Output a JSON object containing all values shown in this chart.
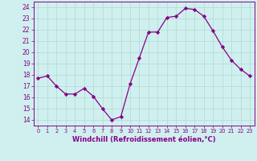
{
  "x": [
    0,
    1,
    2,
    3,
    4,
    5,
    6,
    7,
    8,
    9,
    10,
    11,
    12,
    13,
    14,
    15,
    16,
    17,
    18,
    19,
    20,
    21,
    22,
    23
  ],
  "y": [
    17.7,
    17.9,
    17.0,
    16.3,
    16.3,
    16.8,
    16.1,
    15.0,
    14.0,
    14.3,
    17.2,
    19.5,
    21.8,
    21.8,
    23.1,
    23.2,
    23.9,
    23.8,
    23.2,
    21.9,
    20.5,
    19.3,
    18.5,
    17.9
  ],
  "line_color": "#880088",
  "marker": "D",
  "marker_size": 2.2,
  "xlabel": "Windchill (Refroidissement éolien,°C)",
  "ylim": [
    13.5,
    24.5
  ],
  "yticks": [
    14,
    15,
    16,
    17,
    18,
    19,
    20,
    21,
    22,
    23,
    24
  ],
  "bg_color": "#cff0ee",
  "grid_color": "#b0d8d5",
  "tick_color": "#880088"
}
